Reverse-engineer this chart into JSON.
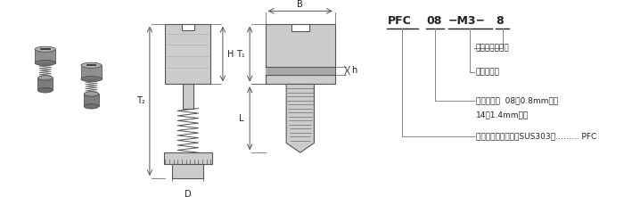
{
  "bg_color": "#ffffff",
  "text_color": "#222222",
  "line_color": "#555555",
  "dim_color": "#555555",
  "annotation_line_color": "#888888",
  "part_number": {
    "pfc": "PFC",
    "num": "08",
    "screw": "-M3-",
    "length": "8"
  },
  "annotations": [
    {
      "label": "ファスナー長さ",
      "from_seg": 3
    },
    {
      "label": "ネジサイズ",
      "from_seg": 2
    },
    {
      "label": "取付け板厚  08：0.8mm以上",
      "from_seg": 1
    },
    {
      "label": "14：1.4mm以上",
      "from_seg": -1
    },
    {
      "label": "材質：ステンレス（SUS303）…… PFC",
      "from_seg": 0
    }
  ],
  "gray_fill": "#cccccc",
  "dark_gray": "#999999",
  "mid_gray": "#b0b0b0"
}
